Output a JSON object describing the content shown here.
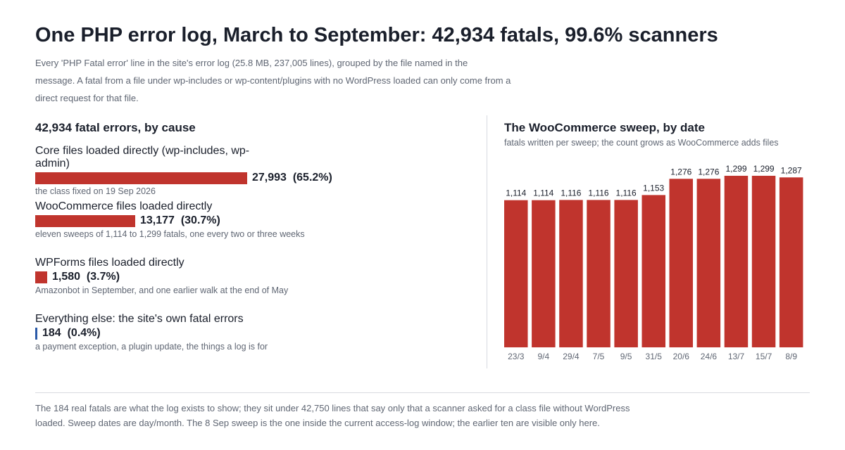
{
  "header": {
    "title": "One PHP error log, March to September: 42,934 fatals, 99.6% scanners",
    "subtitle_lines": [
      "Every 'PHP Fatal error' line in the site's error log (25.8 MB, 237,005 lines), grouped by the file named in the",
      "message. A fatal from a file under wp-includes or wp-content/plugins with no WordPress loaded can only come from a",
      "direct request for that file."
    ]
  },
  "causes": {
    "heading": "42,934 fatal errors, by cause",
    "items": [
      {
        "label": "Core files loaded directly (wp-includes, wp-admin)",
        "value_text": "27,993  (65.2%)",
        "count": 27993,
        "share": 0.652,
        "note": "the class fixed on 19 Sep 2026",
        "color": "#c0342d"
      },
      {
        "label": "WooCommerce files loaded directly",
        "value_text": "13,177  (30.7%)",
        "count": 13177,
        "share": 0.307,
        "note": "eleven sweeps of 1,114 to 1,299 fatals, one every two or three weeks",
        "color": "#c0342d"
      },
      {
        "label": "WPForms files loaded directly",
        "value_text": "1,580  (3.7%)",
        "count": 1580,
        "share": 0.037,
        "note": "Amazonbot in September, and one earlier walk at the end of May",
        "color": "#c0342d"
      },
      {
        "label": "Everything else: the site's own fatal errors",
        "value_text": "184  (0.4%)",
        "count": 184,
        "share": 0.004,
        "note": "a payment exception, a plugin update, the things a log is for",
        "color": "#2a5aa8"
      }
    ]
  },
  "sweep": {
    "heading": "The WooCommerce sweep, by date",
    "subheading": "fatals written per sweep; the count grows as WooCommerce adds files"
  },
  "chart_data": {
    "type": "bar",
    "title": "The WooCommerce sweep, by date",
    "subtitle": "fatals written per sweep; the count grows as WooCommerce adds files",
    "categories": [
      "23/3",
      "9/4",
      "29/4",
      "7/5",
      "9/5",
      "31/5",
      "20/6",
      "24/6",
      "13/7",
      "15/7",
      "8/9"
    ],
    "values": [
      1114,
      1114,
      1116,
      1116,
      1116,
      1153,
      1276,
      1276,
      1299,
      1299,
      1287
    ],
    "value_labels": [
      "1,114",
      "1,114",
      "1,116",
      "1,116",
      "1,116",
      "1,153",
      "1,276",
      "1,276",
      "1,299",
      "1,299",
      "1,287"
    ],
    "ylim": [
      0,
      1299
    ],
    "grid": false,
    "color": "#c0342d"
  },
  "footer": {
    "lines": [
      "The 184 real fatals are what the log exists to show; they sit under 42,750 lines that say only that a scanner asked for a class file without WordPress",
      "loaded. Sweep dates are day/month. The 8 Sep sweep is the one inside the current access-log window; the earlier ten are visible only here."
    ]
  }
}
